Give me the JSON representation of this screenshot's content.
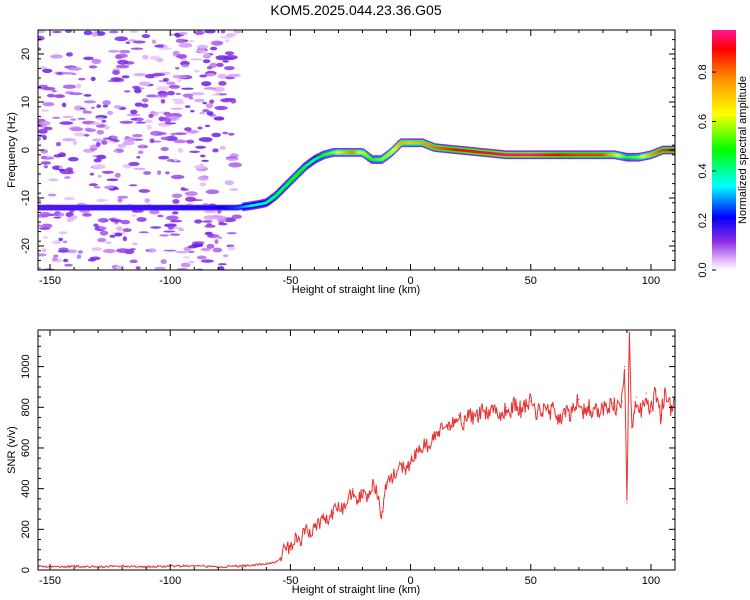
{
  "title": "KOM5.2025.044.23.36.G05",
  "chart_data": [
    {
      "type": "heatmap",
      "name": "spectrogram",
      "xlabel": "Height of straight line (km)",
      "ylabel": "Frequency (Hz)",
      "xlim": [
        -155,
        110
      ],
      "ylim": [
        -25,
        25
      ],
      "xticks": [
        -150,
        -100,
        -50,
        0,
        50,
        100
      ],
      "yticks": [
        -20,
        -10,
        0,
        10,
        20
      ],
      "colorbar": {
        "label": "Normalized spectral amplitude",
        "range": [
          0,
          0.97
        ],
        "ticks": [
          "0.0",
          "0.2",
          "0.4",
          "0.6",
          "0.8"
        ]
      },
      "ridge": {
        "description_points_x": [
          -155,
          -100,
          -80,
          -72,
          -65,
          -60,
          -56,
          -52,
          -48,
          -44,
          -40,
          -36,
          -32,
          -28,
          -24,
          -20,
          -16,
          -12,
          -8,
          -4,
          0,
          5,
          10,
          20,
          30,
          40,
          50,
          60,
          70,
          80,
          85,
          90,
          95,
          100,
          105,
          110
        ],
        "freq_hz": [
          -12,
          -12,
          -12,
          -12,
          -11.5,
          -11,
          -9.5,
          -7.5,
          -5.5,
          -3.5,
          -2,
          -1,
          -0.5,
          -0.5,
          -0.5,
          -0.5,
          -2,
          -2,
          -0.5,
          1.5,
          1.5,
          1.5,
          0.5,
          0,
          -0.5,
          -1,
          -1,
          -1,
          -1,
          -1,
          -1,
          -1.5,
          -1.5,
          -1,
          0,
          0
        ],
        "amplitude": [
          0.15,
          0.18,
          0.2,
          0.25,
          0.35,
          0.4,
          0.45,
          0.45,
          0.5,
          0.45,
          0.4,
          0.5,
          0.55,
          0.7,
          0.8,
          0.6,
          0.5,
          0.55,
          0.6,
          0.75,
          0.7,
          0.75,
          0.8,
          0.9,
          0.92,
          0.95,
          0.97,
          0.9,
          0.85,
          0.85,
          0.7,
          0.5,
          0.55,
          0.75,
          0.85,
          0.9
        ]
      }
    },
    {
      "type": "line",
      "name": "snr",
      "xlabel": "Height of straight line (km)",
      "ylabel": "SNR (v/v)",
      "xlim": [
        -155,
        110
      ],
      "ylim": [
        0,
        1180
      ],
      "xticks": [
        -150,
        -100,
        -50,
        0,
        50,
        100
      ],
      "yticks": [
        0,
        200,
        400,
        600,
        800,
        1000
      ],
      "color": "#e83232",
      "series": [
        {
          "x": [
            -155,
            -150,
            -140,
            -130,
            -120,
            -110,
            -100,
            -90,
            -80,
            -70,
            -65,
            -60,
            -56,
            -54,
            -52,
            -50,
            -48,
            -46,
            -44,
            -42,
            -40,
            -38,
            -36,
            -34,
            -32,
            -30,
            -28,
            -26,
            -24,
            -22,
            -20,
            -18,
            -16,
            -14,
            -12,
            -10,
            -8,
            -6,
            -4,
            -2,
            0,
            2,
            4,
            6,
            8,
            10,
            12,
            14,
            16,
            18,
            20,
            22,
            24,
            26,
            28,
            30,
            32,
            34,
            36,
            38,
            40,
            42,
            44,
            46,
            48,
            50,
            52,
            54,
            56,
            58,
            60,
            62,
            64,
            66,
            68,
            70,
            72,
            74,
            76,
            78,
            80,
            82,
            84,
            86,
            88,
            89,
            90,
            91,
            92,
            93,
            94,
            96,
            98,
            100,
            102,
            104,
            106,
            108,
            110
          ],
          "values": [
            20,
            15,
            18,
            15,
            20,
            15,
            18,
            20,
            15,
            20,
            25,
            30,
            40,
            60,
            110,
            100,
            170,
            120,
            200,
            180,
            210,
            230,
            260,
            240,
            280,
            320,
            300,
            350,
            400,
            330,
            390,
            370,
            420,
            380,
            260,
            430,
            460,
            470,
            520,
            470,
            540,
            560,
            600,
            620,
            600,
            660,
            680,
            700,
            690,
            740,
            760,
            720,
            780,
            740,
            760,
            790,
            770,
            800,
            780,
            760,
            800,
            790,
            820,
            780,
            810,
            830,
            770,
            790,
            800,
            780,
            790,
            740,
            770,
            760,
            790,
            840,
            780,
            800,
            770,
            790,
            800,
            780,
            820,
            790,
            830,
            1000,
            330,
            1180,
            700,
            780,
            850,
            760,
            870,
            780,
            880,
            760,
            880,
            800,
            810
          ]
        }
      ]
    }
  ]
}
